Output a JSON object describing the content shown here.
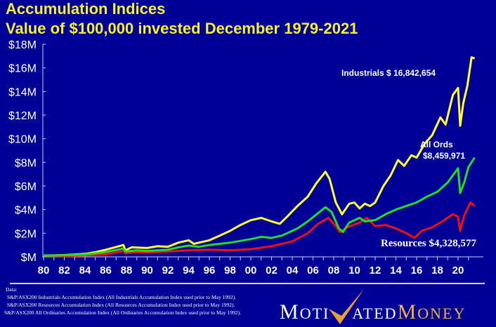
{
  "title": "Accumulation Indices",
  "subtitle": "Value of $100,000 invested December  1979-2021",
  "chart_data": {
    "type": "line",
    "title": "Accumulation Indices",
    "subtitle": "Value of $100,000 invested December  1979-2021",
    "xlabel": "",
    "ylabel": "",
    "ylim": [
      0,
      18
    ],
    "xlim": [
      1980,
      2021.6
    ],
    "y_ticks": [
      "$M",
      "$2M",
      "$4M",
      "$6M",
      "$8M",
      "$10M",
      "$12M",
      "$14M",
      "$16M",
      "$18M"
    ],
    "x_ticks": [
      "80",
      "82",
      "84",
      "86",
      "88",
      "90",
      "92",
      "94",
      "96",
      "98",
      "00",
      "02",
      "04",
      "06",
      "08",
      "10",
      "12",
      "14",
      "16",
      "18",
      "20"
    ],
    "grid": false,
    "series": [
      {
        "name": "Industrials",
        "color": "#ffff33",
        "label": "Industrials $ 16,842,654",
        "points": [
          [
            1980,
            0.1
          ],
          [
            1982,
            0.15
          ],
          [
            1984,
            0.25
          ],
          [
            1985,
            0.4
          ],
          [
            1986,
            0.6
          ],
          [
            1987.7,
            1.0
          ],
          [
            1987.9,
            0.55
          ],
          [
            1988.5,
            0.8
          ],
          [
            1990,
            0.75
          ],
          [
            1991,
            0.9
          ],
          [
            1992,
            0.85
          ],
          [
            1993,
            1.2
          ],
          [
            1994,
            1.4
          ],
          [
            1994.5,
            1.1
          ],
          [
            1996,
            1.4
          ],
          [
            1997,
            1.8
          ],
          [
            1998,
            2.2
          ],
          [
            1999,
            2.7
          ],
          [
            2000,
            3.1
          ],
          [
            2001,
            3.3
          ],
          [
            2002,
            3.0
          ],
          [
            2002.8,
            2.8
          ],
          [
            2003.5,
            3.4
          ],
          [
            2004.5,
            4.3
          ],
          [
            2005.5,
            5.1
          ],
          [
            2006.3,
            6.2
          ],
          [
            2007.2,
            7.2
          ],
          [
            2007.6,
            6.6
          ],
          [
            2008.2,
            4.6
          ],
          [
            2008.8,
            3.6
          ],
          [
            2009.5,
            4.5
          ],
          [
            2010,
            4.6
          ],
          [
            2010.5,
            4.1
          ],
          [
            2011,
            4.5
          ],
          [
            2011.5,
            4.3
          ],
          [
            2012,
            4.6
          ],
          [
            2012.8,
            6.0
          ],
          [
            2013.5,
            6.9
          ],
          [
            2014.2,
            8.2
          ],
          [
            2014.8,
            7.7
          ],
          [
            2015.5,
            8.6
          ],
          [
            2016,
            8.4
          ],
          [
            2016.8,
            9.6
          ],
          [
            2017.5,
            10.3
          ],
          [
            2018.3,
            11.8
          ],
          [
            2018.8,
            11.2
          ],
          [
            2019.5,
            13.7
          ],
          [
            2020,
            14.3
          ],
          [
            2020.2,
            11.1
          ],
          [
            2020.5,
            13.0
          ],
          [
            2020.9,
            14.5
          ],
          [
            2021.3,
            16.9
          ],
          [
            2021.6,
            16.8
          ]
        ]
      },
      {
        "name": "All Ords",
        "color": "#22dd22",
        "label": "All Ords $8,459,971",
        "points": [
          [
            1980,
            0.1
          ],
          [
            1982,
            0.13
          ],
          [
            1984,
            0.2
          ],
          [
            1986,
            0.4
          ],
          [
            1987.7,
            0.7
          ],
          [
            1987.9,
            0.45
          ],
          [
            1989,
            0.55
          ],
          [
            1990,
            0.5
          ],
          [
            1992,
            0.6
          ],
          [
            1993,
            0.8
          ],
          [
            1994,
            0.95
          ],
          [
            1995,
            0.85
          ],
          [
            1996,
            1.0
          ],
          [
            1998,
            1.2
          ],
          [
            2000,
            1.5
          ],
          [
            2001,
            1.7
          ],
          [
            2002,
            1.6
          ],
          [
            2003,
            1.8
          ],
          [
            2004.5,
            2.4
          ],
          [
            2005.5,
            3.0
          ],
          [
            2006.5,
            3.7
          ],
          [
            2007.2,
            4.2
          ],
          [
            2007.8,
            3.8
          ],
          [
            2008.5,
            2.4
          ],
          [
            2008.9,
            2.1
          ],
          [
            2009.5,
            2.9
          ],
          [
            2010.5,
            3.3
          ],
          [
            2011,
            3.0
          ],
          [
            2012,
            3.1
          ],
          [
            2013,
            3.6
          ],
          [
            2014,
            4.0
          ],
          [
            2015,
            4.3
          ],
          [
            2016,
            4.6
          ],
          [
            2017,
            5.1
          ],
          [
            2018,
            5.5
          ],
          [
            2019,
            6.3
          ],
          [
            2020,
            7.5
          ],
          [
            2020.2,
            5.4
          ],
          [
            2020.6,
            6.3
          ],
          [
            2021,
            7.6
          ],
          [
            2021.6,
            8.4
          ]
        ]
      },
      {
        "name": "Resources",
        "color": "#ee1111",
        "label": "Resources $4,328,577",
        "points": [
          [
            1980,
            0.1
          ],
          [
            1982,
            0.08
          ],
          [
            1984,
            0.12
          ],
          [
            1986,
            0.2
          ],
          [
            1987.7,
            0.5
          ],
          [
            1987.9,
            0.3
          ],
          [
            1989,
            0.4
          ],
          [
            1990,
            0.35
          ],
          [
            1992,
            0.45
          ],
          [
            1994,
            0.55
          ],
          [
            1996,
            0.6
          ],
          [
            1998,
            0.55
          ],
          [
            2000,
            0.65
          ],
          [
            2002,
            0.9
          ],
          [
            2004,
            1.3
          ],
          [
            2005.5,
            2.0
          ],
          [
            2006.5,
            2.8
          ],
          [
            2007.5,
            3.3
          ],
          [
            2008.2,
            2.6
          ],
          [
            2008.6,
            2.1
          ],
          [
            2009.3,
            2.5
          ],
          [
            2010.5,
            2.9
          ],
          [
            2011.2,
            3.3
          ],
          [
            2012,
            2.6
          ],
          [
            2013,
            2.7
          ],
          [
            2014,
            2.4
          ],
          [
            2015,
            2.0
          ],
          [
            2015.8,
            1.6
          ],
          [
            2016.5,
            2.2
          ],
          [
            2017.5,
            2.5
          ],
          [
            2018.5,
            3.0
          ],
          [
            2019.5,
            3.6
          ],
          [
            2020,
            3.4
          ],
          [
            2020.2,
            2.2
          ],
          [
            2020.6,
            3.5
          ],
          [
            2021.2,
            4.6
          ],
          [
            2021.6,
            4.3
          ]
        ]
      }
    ]
  },
  "footer": {
    "data_label": "Data:",
    "notes": [
      "S&P/ASX200 Industrials Accumulation Index (All Industrials Accumulation Index used prior to May 1992).",
      "S&P/ASX200 Resources Accumulation Index (All Resources Accumulation Index used prior to May 1992).",
      "S&P/ASX200 All Ordinaries Accumulation Index (All Ordinaries Accumulation Index used prior to May 1992)."
    ],
    "logo": "MOTIVATEDMONEY"
  }
}
